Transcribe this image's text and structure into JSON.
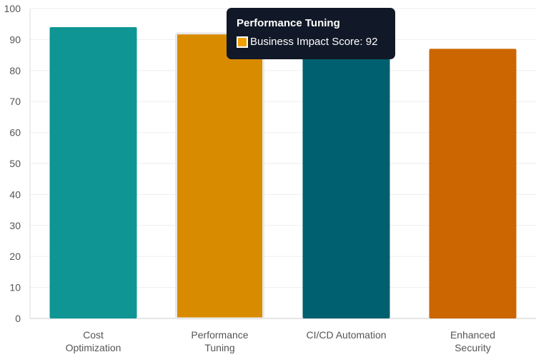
{
  "chart_data": {
    "type": "bar",
    "categories": [
      [
        "Cost",
        "Optimization"
      ],
      [
        "Performance",
        "Tuning"
      ],
      [
        "CI/CD Automation"
      ],
      [
        "Enhanced",
        "Security"
      ]
    ],
    "series": [
      {
        "name": "Business Impact Score",
        "values": [
          94,
          92,
          91,
          87
        ],
        "colors": [
          "#0e9594",
          "#d98b00",
          "#00606f",
          "#cc6600"
        ]
      }
    ],
    "ylim": [
      0,
      100
    ],
    "yticks": [
      0,
      10,
      20,
      30,
      40,
      50,
      60,
      70,
      80,
      90,
      100
    ],
    "grid": true,
    "highlighted_index": 1
  },
  "tooltip": {
    "title": "Performance Tuning",
    "series_label": "Business Impact Score",
    "value": 92,
    "text": "Business Impact Score: 92",
    "swatch_color": "#f0a000"
  }
}
